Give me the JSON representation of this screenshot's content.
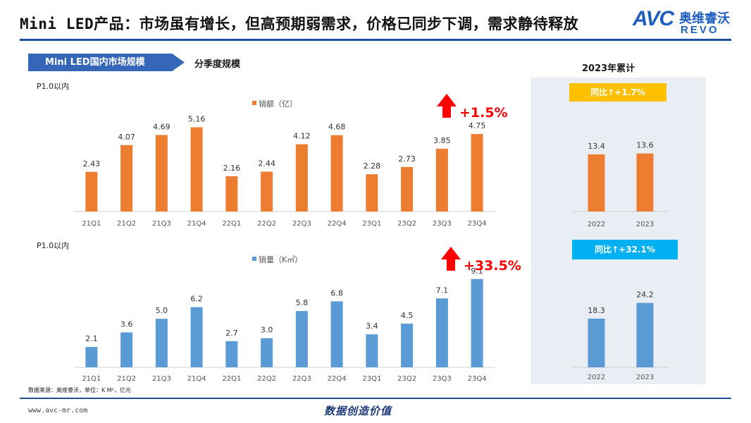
{
  "header": {
    "title": "Mini LED产品：市场虽有增长，但高预期弱需求，价格已同步下调，需求静待释放",
    "logo_text": "AVC",
    "logo_cn": "奥维睿沃",
    "logo_en": "REVO"
  },
  "section": {
    "tab_label": "Mini LED国内市场规模",
    "sub_label": "分季度规模",
    "cumulative_title": "2023年累计"
  },
  "footer": {
    "note": "数据来源：奥维睿沃，单位：K M²，亿元",
    "website": "www.avc-mr.com",
    "slogan": "数据创造价值"
  },
  "colors": {
    "orange": "#ED7D31",
    "blue": "#5B9BD5",
    "arrow_red": "#FF0000",
    "badge_gold": "#FFC000",
    "badge_blue": "#00B0F0",
    "rule_blue": "#1F4E9A",
    "panel_bg": "#E9EEF4"
  },
  "chart_data": [
    {
      "type": "bar",
      "title": "P1.0以内",
      "legend": "销额（亿）",
      "categories": [
        "21Q1",
        "21Q2",
        "21Q3",
        "21Q4",
        "22Q1",
        "22Q2",
        "22Q3",
        "22Q4",
        "23Q1",
        "23Q2",
        "23Q3",
        "23Q4"
      ],
      "values": [
        2.43,
        4.07,
        4.69,
        5.16,
        2.16,
        2.44,
        4.12,
        4.68,
        2.28,
        2.73,
        3.85,
        4.75
      ],
      "labels": [
        "2.43",
        "4.07",
        "4.69",
        "5.16",
        "2.16",
        "2.44",
        "4.12",
        "4.68",
        "2.28",
        "2.73",
        "3.85",
        "4.75"
      ],
      "color": "#ED7D31",
      "ylim": [
        0,
        5.4
      ],
      "annotation": "+1.5%"
    },
    {
      "type": "bar",
      "title": "P1.0以内",
      "legend": "销量（K㎡）",
      "categories": [
        "21Q1",
        "21Q2",
        "21Q3",
        "21Q4",
        "22Q1",
        "22Q2",
        "22Q3",
        "22Q4",
        "23Q1",
        "23Q2",
        "23Q3",
        "23Q4"
      ],
      "values": [
        2.1,
        3.6,
        5.0,
        6.2,
        2.7,
        3.0,
        5.8,
        6.8,
        3.4,
        4.5,
        7.1,
        9.1
      ],
      "labels": [
        "2.1",
        "3.6",
        "5.0",
        "6.2",
        "2.7",
        "3.0",
        "5.8",
        "6.8",
        "3.4",
        "4.5",
        "7.1",
        "9.1"
      ],
      "color": "#5B9BD5",
      "ylim": [
        0,
        9.3
      ],
      "annotation": "+33.5%"
    },
    {
      "type": "bar",
      "categories": [
        "2022",
        "2023"
      ],
      "values": [
        13.4,
        13.6
      ],
      "labels": [
        "13.4",
        "13.6"
      ],
      "color": "#ED7D31",
      "ylim": [
        0,
        16.2
      ],
      "badge": "同比↑+1.7%"
    },
    {
      "type": "bar",
      "categories": [
        "2022",
        "2023"
      ],
      "values": [
        18.3,
        24.2
      ],
      "labels": [
        "18.3",
        "24.2"
      ],
      "color": "#5B9BD5",
      "ylim": [
        0,
        26.5
      ],
      "badge": "同比↑+32.1%"
    }
  ]
}
